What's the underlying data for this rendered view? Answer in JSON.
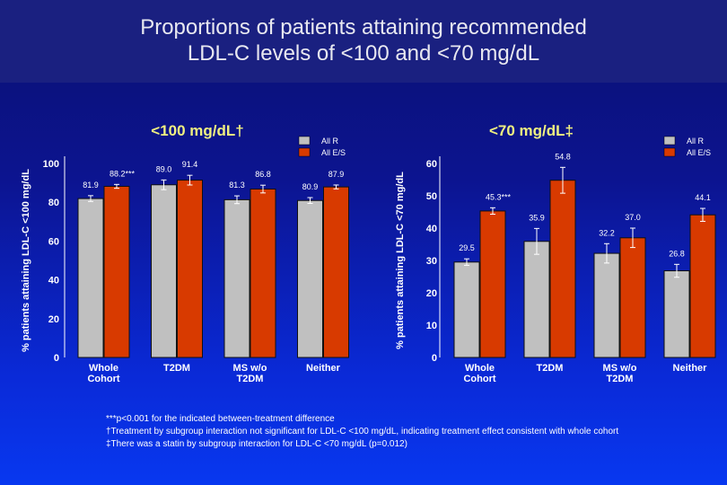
{
  "title_lines": [
    "Proportions of patients attaining recommended",
    "LDL-C levels of <100 and <70 mg/dL"
  ],
  "colors": {
    "all_r": "#c0c0c0",
    "all_es": "#d83a00"
  },
  "chart_data": [
    {
      "type": "bar",
      "title": "<100 mg/dL†",
      "ylabel": "% patients attaining LDL-C <100 mg/dL",
      "ylim": [
        0,
        100
      ],
      "yticks": [
        0,
        20,
        40,
        60,
        80,
        100
      ],
      "categories": [
        "Whole\nCohort",
        "T2DM",
        "MS w/o\nT2DM",
        "Neither"
      ],
      "legend_position": "top-right",
      "series": [
        {
          "name": "All R",
          "values": [
            81.9,
            89.0,
            81.3,
            80.9
          ],
          "errors": [
            1.5,
            2.5,
            2,
            1.5
          ],
          "labels": [
            "81.9",
            "89.0",
            "81.3",
            "80.9"
          ]
        },
        {
          "name": "All E/S",
          "values": [
            88.2,
            91.4,
            86.8,
            87.9
          ],
          "errors": [
            1,
            2.5,
            2,
            1
          ],
          "labels": [
            "88.2***",
            "91.4",
            "86.8",
            "87.9"
          ]
        }
      ]
    },
    {
      "type": "bar",
      "title": "<70 mg/dL‡",
      "ylabel": "% patients attaining LDL-C <70 mg/dL",
      "ylim": [
        0,
        60
      ],
      "yticks": [
        0,
        10,
        20,
        30,
        40,
        50,
        60
      ],
      "categories": [
        "Whole\nCohort",
        "T2DM",
        "MS w/o\nT2DM",
        "Neither"
      ],
      "legend_position": "top-right",
      "series": [
        {
          "name": "All R",
          "values": [
            29.5,
            35.9,
            32.2,
            26.8
          ],
          "errors": [
            1,
            4,
            3,
            2
          ],
          "labels": [
            "29.5",
            "35.9",
            "32.2",
            "26.8"
          ]
        },
        {
          "name": "All E/S",
          "values": [
            45.3,
            54.8,
            37.0,
            44.1
          ],
          "errors": [
            1,
            4,
            3,
            2
          ],
          "labels": [
            "45.3***",
            "54.8",
            "37.0",
            "44.1"
          ]
        }
      ]
    }
  ],
  "footnotes": [
    "***p<0.001 for the indicated between-treatment difference",
    "†Treatment by subgroup interaction not significant for LDL-C <100 mg/dL, indicating treatment effect consistent with whole cohort",
    "‡There was a statin by subgroup interaction for LDL-C <70 mg/dL (p=0.012)"
  ]
}
